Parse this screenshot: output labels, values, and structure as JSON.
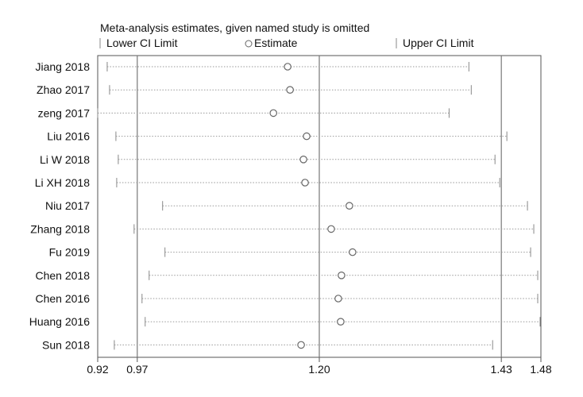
{
  "chart_data": {
    "type": "forest",
    "title": "Meta-analysis estimates, given named study is omitted",
    "legend": {
      "lower": "Lower CI Limit",
      "estimate": "Estimate",
      "upper": "Upper CI Limit"
    },
    "x_ticks": [
      {
        "value": 0.92,
        "label": "0.92"
      },
      {
        "value": 0.97,
        "label": "0.97"
      },
      {
        "value": 1.2,
        "label": "1.20"
      },
      {
        "value": 1.43,
        "label": "1.43"
      },
      {
        "value": 1.48,
        "label": "1.48"
      }
    ],
    "reference_lines": [
      0.97,
      1.2,
      1.43
    ],
    "xlim": [
      0.92,
      1.48
    ],
    "studies": [
      {
        "name": "Jiang 2018",
        "lower": 0.932,
        "estimate": 1.16,
        "upper": 1.389
      },
      {
        "name": "Zhao 2017",
        "lower": 0.935,
        "estimate": 1.163,
        "upper": 1.392
      },
      {
        "name": "zeng 2017",
        "lower": 0.92,
        "estimate": 1.142,
        "upper": 1.364
      },
      {
        "name": "Liu 2016",
        "lower": 0.943,
        "estimate": 1.184,
        "upper": 1.437
      },
      {
        "name": "Li W 2018",
        "lower": 0.946,
        "estimate": 1.18,
        "upper": 1.422
      },
      {
        "name": "Li XH 2018",
        "lower": 0.944,
        "estimate": 1.182,
        "upper": 1.428
      },
      {
        "name": "Niu 2017",
        "lower": 1.002,
        "estimate": 1.238,
        "upper": 1.463
      },
      {
        "name": "Zhang 2018",
        "lower": 0.966,
        "estimate": 1.215,
        "upper": 1.471
      },
      {
        "name": "Fu 2019",
        "lower": 1.005,
        "estimate": 1.242,
        "upper": 1.467
      },
      {
        "name": "Chen 2018",
        "lower": 0.985,
        "estimate": 1.228,
        "upper": 1.476
      },
      {
        "name": "Chen 2016",
        "lower": 0.976,
        "estimate": 1.224,
        "upper": 1.476
      },
      {
        "name": "Huang 2016",
        "lower": 0.98,
        "estimate": 1.227,
        "upper": 1.479
      },
      {
        "name": "Sun 2018",
        "lower": 0.941,
        "estimate": 1.177,
        "upper": 1.419
      }
    ]
  }
}
